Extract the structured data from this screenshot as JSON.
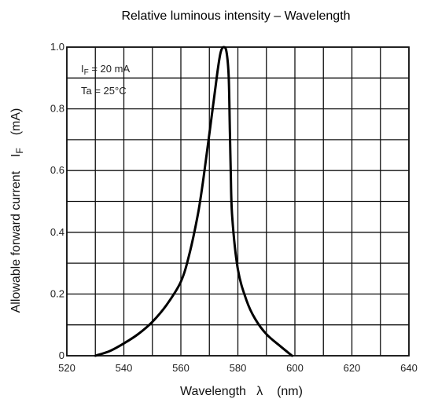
{
  "chart_data": {
    "type": "line",
    "title": "Relative luminous intensity – Wavelength",
    "xlabel": "Wavelength   λ    (nm)",
    "ylabel": "Allowable forward current    I",
    "ylabel_subscript": "F",
    "ylabel_unit": "(mA)",
    "xlim": [
      520,
      640
    ],
    "ylim": [
      0,
      1.0
    ],
    "x_ticks": [
      "520",
      "540",
      "560",
      "580",
      "600",
      "620",
      "640"
    ],
    "y_ticks": [
      "0",
      "0.2",
      "0.4",
      "0.6",
      "0.8",
      "1.0"
    ],
    "grid": true,
    "annotations": {
      "current_prefix": "I",
      "current_sub": "F",
      "current_value": " = 20 mA",
      "temperature": "Ta = 25°C"
    },
    "series": [
      {
        "x": [
          530,
          535,
          540,
          545,
          550,
          555,
          560,
          563,
          566,
          568,
          570,
          572,
          573,
          574,
          575,
          576,
          576.8,
          577.2,
          577.5,
          578,
          580,
          583,
          586,
          590,
          595,
          599
        ],
        "values": [
          0.0,
          0.015,
          0.04,
          0.07,
          0.11,
          0.165,
          0.24,
          0.33,
          0.46,
          0.58,
          0.72,
          0.86,
          0.93,
          0.985,
          1.0,
          0.985,
          0.9,
          0.72,
          0.6,
          0.45,
          0.28,
          0.18,
          0.12,
          0.07,
          0.03,
          0.0
        ]
      }
    ]
  }
}
